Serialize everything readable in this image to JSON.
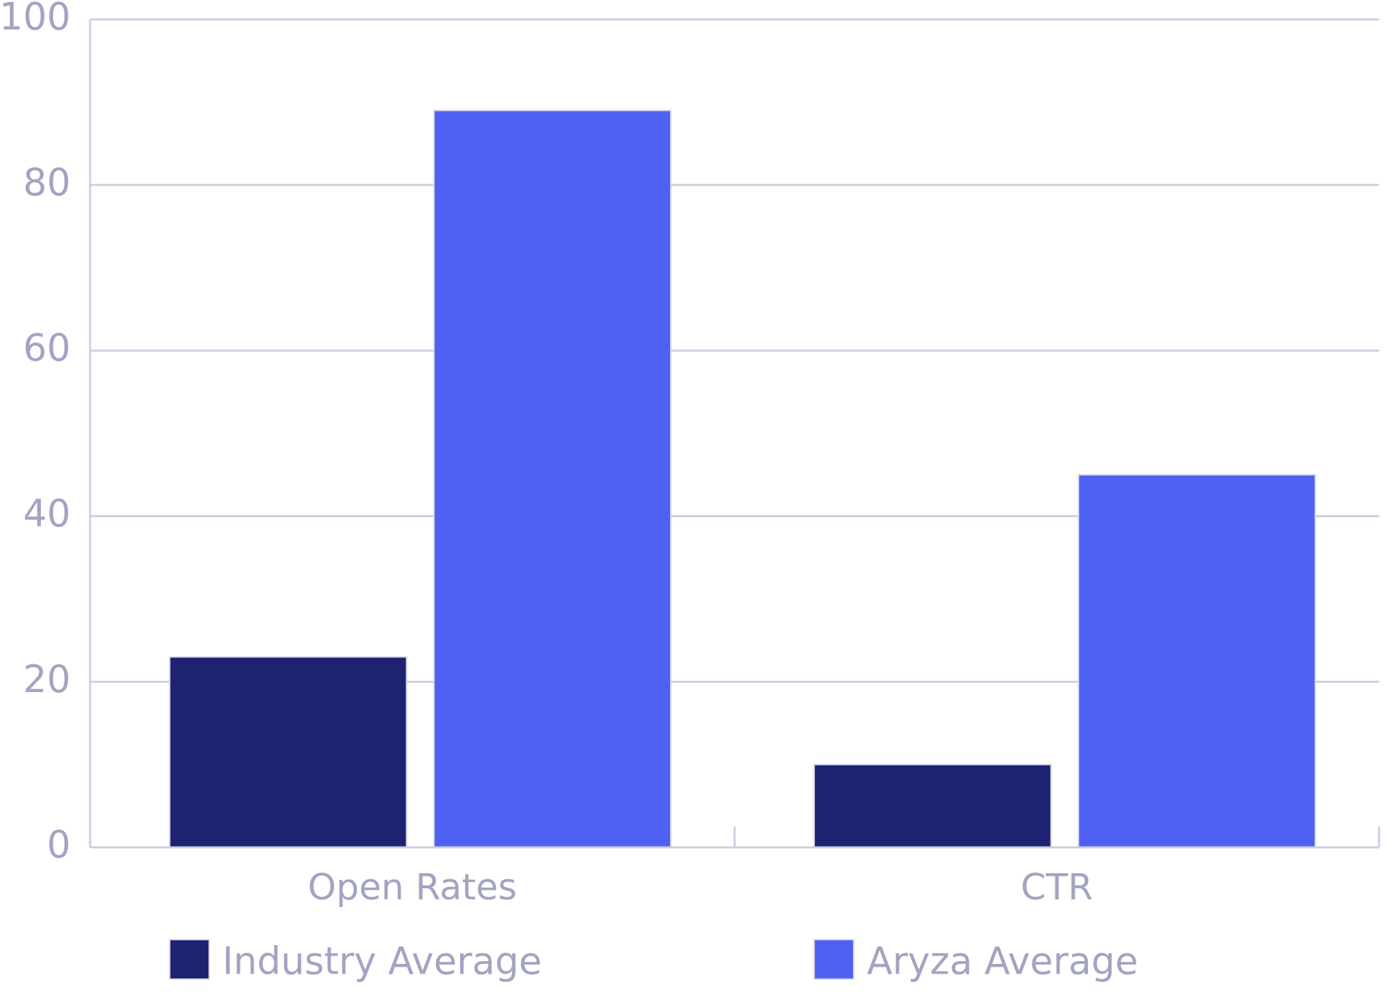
{
  "chart_data": {
    "type": "bar",
    "categories": [
      "Open Rates",
      "CTR"
    ],
    "series": [
      {
        "name": "Industry Average",
        "color": "#1d2272",
        "values": [
          23,
          10
        ]
      },
      {
        "name": "Aryza Average",
        "color": "#4f61f2",
        "values": [
          89,
          45
        ]
      }
    ],
    "ylim": [
      0,
      100
    ],
    "yticks": [
      0,
      20,
      40,
      60,
      80,
      100
    ],
    "grid": true
  }
}
